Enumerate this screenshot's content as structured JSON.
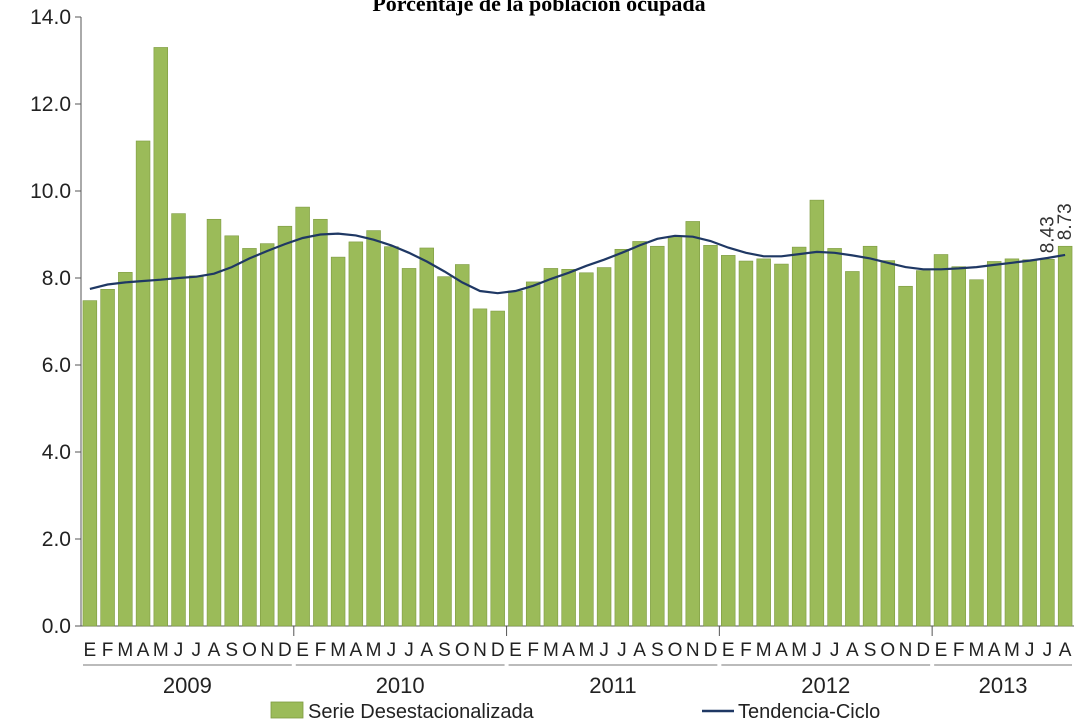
{
  "chart_data": {
    "type": "bar",
    "title": "Porcentaje de la población ocupada",
    "ylim": [
      0,
      14
    ],
    "yticks": [
      "0.0",
      "2.0",
      "4.0",
      "6.0",
      "8.0",
      "10.0",
      "12.0",
      "14.0"
    ],
    "ytick_values": [
      0,
      2,
      4,
      6,
      8,
      10,
      12,
      14
    ],
    "month_labels": [
      "E",
      "F",
      "M",
      "A",
      "M",
      "J",
      "J",
      "A",
      "S",
      "O",
      "N",
      "D",
      "E",
      "F",
      "M",
      "A",
      "M",
      "J",
      "J",
      "A",
      "S",
      "O",
      "N",
      "D",
      "E",
      "F",
      "M",
      "A",
      "M",
      "J",
      "J",
      "A",
      "S",
      "O",
      "N",
      "D",
      "E",
      "F",
      "M",
      "A",
      "M",
      "J",
      "J",
      "A",
      "S",
      "O",
      "N",
      "D",
      "E",
      "F",
      "M",
      "A",
      "M",
      "J",
      "J",
      "A"
    ],
    "years": [
      "2009",
      "2010",
      "2011",
      "2012",
      "2013"
    ],
    "series": [
      {
        "name": "Serie Desestacionalizada",
        "kind": "bar",
        "color": "#9bbb59",
        "values": [
          7.48,
          7.74,
          8.13,
          11.15,
          13.3,
          9.48,
          8.05,
          9.35,
          8.97,
          8.68,
          8.79,
          9.19,
          9.63,
          9.35,
          8.48,
          8.83,
          9.09,
          8.72,
          8.22,
          8.69,
          8.03,
          8.31,
          7.29,
          7.24,
          7.7,
          7.91,
          8.22,
          8.2,
          8.12,
          8.24,
          8.66,
          8.84,
          8.73,
          8.95,
          9.3,
          8.75,
          8.52,
          8.39,
          8.44,
          8.32,
          8.71,
          9.79,
          8.68,
          8.15,
          8.73,
          8.4,
          7.81,
          8.17,
          8.54,
          8.26,
          7.96,
          8.38,
          8.44,
          8.42,
          8.43,
          8.73
        ]
      },
      {
        "name": "Tendencia-Ciclo",
        "kind": "line",
        "color": "#1f3864",
        "values": [
          7.75,
          7.85,
          7.9,
          7.93,
          7.96,
          8.0,
          8.03,
          8.1,
          8.25,
          8.45,
          8.62,
          8.78,
          8.92,
          9.0,
          9.02,
          8.98,
          8.88,
          8.75,
          8.58,
          8.38,
          8.15,
          7.9,
          7.7,
          7.65,
          7.7,
          7.82,
          7.98,
          8.12,
          8.28,
          8.42,
          8.58,
          8.75,
          8.9,
          8.97,
          8.95,
          8.85,
          8.7,
          8.58,
          8.5,
          8.5,
          8.55,
          8.6,
          8.58,
          8.52,
          8.45,
          8.35,
          8.25,
          8.2,
          8.2,
          8.22,
          8.25,
          8.3,
          8.35,
          8.4,
          8.46,
          8.53
        ]
      }
    ],
    "data_labels": [
      "8.43",
      "8.73"
    ],
    "legend_position": "bottom",
    "grid": false
  }
}
